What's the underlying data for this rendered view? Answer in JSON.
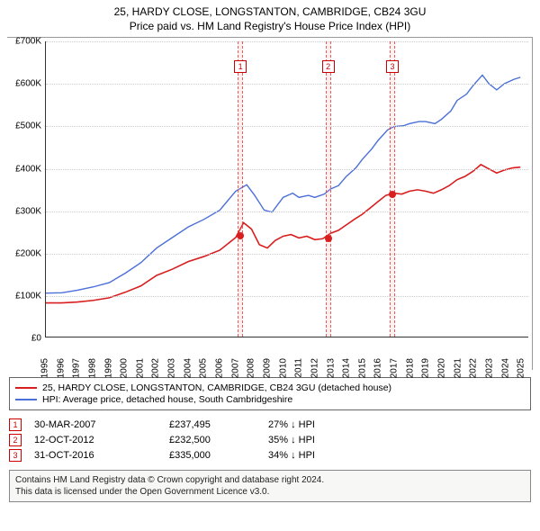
{
  "title_line1": "25, HARDY CLOSE, LONGSTANTON, CAMBRIDGE, CB24 3GU",
  "title_line2": "Price paid vs. HM Land Registry's House Price Index (HPI)",
  "chart": {
    "type": "line",
    "x_min": 1995,
    "x_max": 2025.5,
    "y_min": 0,
    "y_max": 700000,
    "y_ticks": [
      0,
      100000,
      200000,
      300000,
      400000,
      500000,
      600000,
      700000
    ],
    "y_tick_labels": [
      "£0",
      "£100K",
      "£200K",
      "£300K",
      "£400K",
      "£500K",
      "£600K",
      "£700K"
    ],
    "x_ticks": [
      1995,
      1996,
      1997,
      1998,
      1999,
      2000,
      2001,
      2002,
      2003,
      2004,
      2005,
      2006,
      2007,
      2008,
      2009,
      2010,
      2011,
      2012,
      2013,
      2014,
      2015,
      2016,
      2017,
      2018,
      2019,
      2020,
      2021,
      2022,
      2023,
      2024,
      2025
    ],
    "background_color": "#ffffff",
    "grid_color": "#cccccc",
    "label_fontsize": 10,
    "series": [
      {
        "name": "hpi",
        "color": "#4a6fd8",
        "width": 1.4,
        "points": [
          [
            1995,
            103000
          ],
          [
            1996,
            104000
          ],
          [
            1997,
            110000
          ],
          [
            1998,
            118000
          ],
          [
            1999,
            128000
          ],
          [
            2000,
            150000
          ],
          [
            2001,
            175000
          ],
          [
            2002,
            210000
          ],
          [
            2003,
            235000
          ],
          [
            2004,
            260000
          ],
          [
            2005,
            278000
          ],
          [
            2006,
            300000
          ],
          [
            2007,
            345000
          ],
          [
            2007.7,
            360000
          ],
          [
            2008.2,
            335000
          ],
          [
            2008.8,
            300000
          ],
          [
            2009.3,
            295000
          ],
          [
            2010,
            330000
          ],
          [
            2010.6,
            340000
          ],
          [
            2011,
            330000
          ],
          [
            2011.6,
            335000
          ],
          [
            2012,
            330000
          ],
          [
            2012.6,
            338000
          ],
          [
            2013,
            350000
          ],
          [
            2013.5,
            358000
          ],
          [
            2014,
            380000
          ],
          [
            2014.6,
            400000
          ],
          [
            2015,
            420000
          ],
          [
            2015.6,
            445000
          ],
          [
            2016,
            465000
          ],
          [
            2016.6,
            490000
          ],
          [
            2017,
            498000
          ],
          [
            2017.6,
            500000
          ],
          [
            2018,
            505000
          ],
          [
            2018.6,
            510000
          ],
          [
            2019,
            510000
          ],
          [
            2019.6,
            505000
          ],
          [
            2020,
            515000
          ],
          [
            2020.6,
            535000
          ],
          [
            2021,
            560000
          ],
          [
            2021.6,
            575000
          ],
          [
            2022,
            595000
          ],
          [
            2022.6,
            620000
          ],
          [
            2023,
            600000
          ],
          [
            2023.5,
            585000
          ],
          [
            2024,
            600000
          ],
          [
            2024.6,
            610000
          ],
          [
            2025,
            615000
          ]
        ]
      },
      {
        "name": "property",
        "color": "#d81e1e",
        "width": 1.6,
        "points": [
          [
            1995,
            80000
          ],
          [
            1996,
            80000
          ],
          [
            1997,
            82000
          ],
          [
            1998,
            86000
          ],
          [
            1999,
            92000
          ],
          [
            2000,
            105000
          ],
          [
            2001,
            120000
          ],
          [
            2002,
            145000
          ],
          [
            2003,
            160000
          ],
          [
            2004,
            178000
          ],
          [
            2005,
            190000
          ],
          [
            2006,
            205000
          ],
          [
            2007,
            235000
          ],
          [
            2007.5,
            270000
          ],
          [
            2008,
            255000
          ],
          [
            2008.5,
            218000
          ],
          [
            2009,
            210000
          ],
          [
            2009.5,
            228000
          ],
          [
            2010,
            238000
          ],
          [
            2010.5,
            242000
          ],
          [
            2011,
            234000
          ],
          [
            2011.5,
            238000
          ],
          [
            2012,
            230000
          ],
          [
            2012.5,
            232000
          ],
          [
            2013,
            245000
          ],
          [
            2013.5,
            252000
          ],
          [
            2014,
            265000
          ],
          [
            2014.5,
            278000
          ],
          [
            2015,
            290000
          ],
          [
            2015.5,
            305000
          ],
          [
            2016,
            320000
          ],
          [
            2016.5,
            335000
          ],
          [
            2017,
            340000
          ],
          [
            2017.5,
            338000
          ],
          [
            2018,
            345000
          ],
          [
            2018.5,
            348000
          ],
          [
            2019,
            345000
          ],
          [
            2019.5,
            340000
          ],
          [
            2020,
            348000
          ],
          [
            2020.5,
            358000
          ],
          [
            2021,
            372000
          ],
          [
            2021.5,
            380000
          ],
          [
            2022,
            392000
          ],
          [
            2022.5,
            408000
          ],
          [
            2023,
            398000
          ],
          [
            2023.5,
            388000
          ],
          [
            2024,
            395000
          ],
          [
            2024.5,
            400000
          ],
          [
            2025,
            402000
          ]
        ]
      }
    ],
    "markers": [
      {
        "n": "1",
        "x": 2007.25,
        "band_w": 0.35,
        "dot_y": 237495,
        "top_y": 655000
      },
      {
        "n": "2",
        "x": 2012.78,
        "band_w": 0.35,
        "dot_y": 232500,
        "top_y": 655000
      },
      {
        "n": "3",
        "x": 2016.83,
        "band_w": 0.35,
        "dot_y": 335000,
        "top_y": 655000
      }
    ],
    "dot_color": "#d81e1e"
  },
  "legend": {
    "property": {
      "color": "#d81e1e",
      "label": "25, HARDY CLOSE, LONGSTANTON, CAMBRIDGE, CB24 3GU (detached house)"
    },
    "hpi": {
      "color": "#4a6fd8",
      "label": "HPI: Average price, detached house, South Cambridgeshire"
    }
  },
  "sales": [
    {
      "n": "1",
      "date": "30-MAR-2007",
      "price": "£237,495",
      "diff": "27% ↓ HPI"
    },
    {
      "n": "2",
      "date": "12-OCT-2012",
      "price": "£232,500",
      "diff": "35% ↓ HPI"
    },
    {
      "n": "3",
      "date": "31-OCT-2016",
      "price": "£335,000",
      "diff": "34% ↓ HPI"
    }
  ],
  "footer_line1": "Contains HM Land Registry data © Crown copyright and database right 2024.",
  "footer_line2": "This data is licensed under the Open Government Licence v3.0."
}
